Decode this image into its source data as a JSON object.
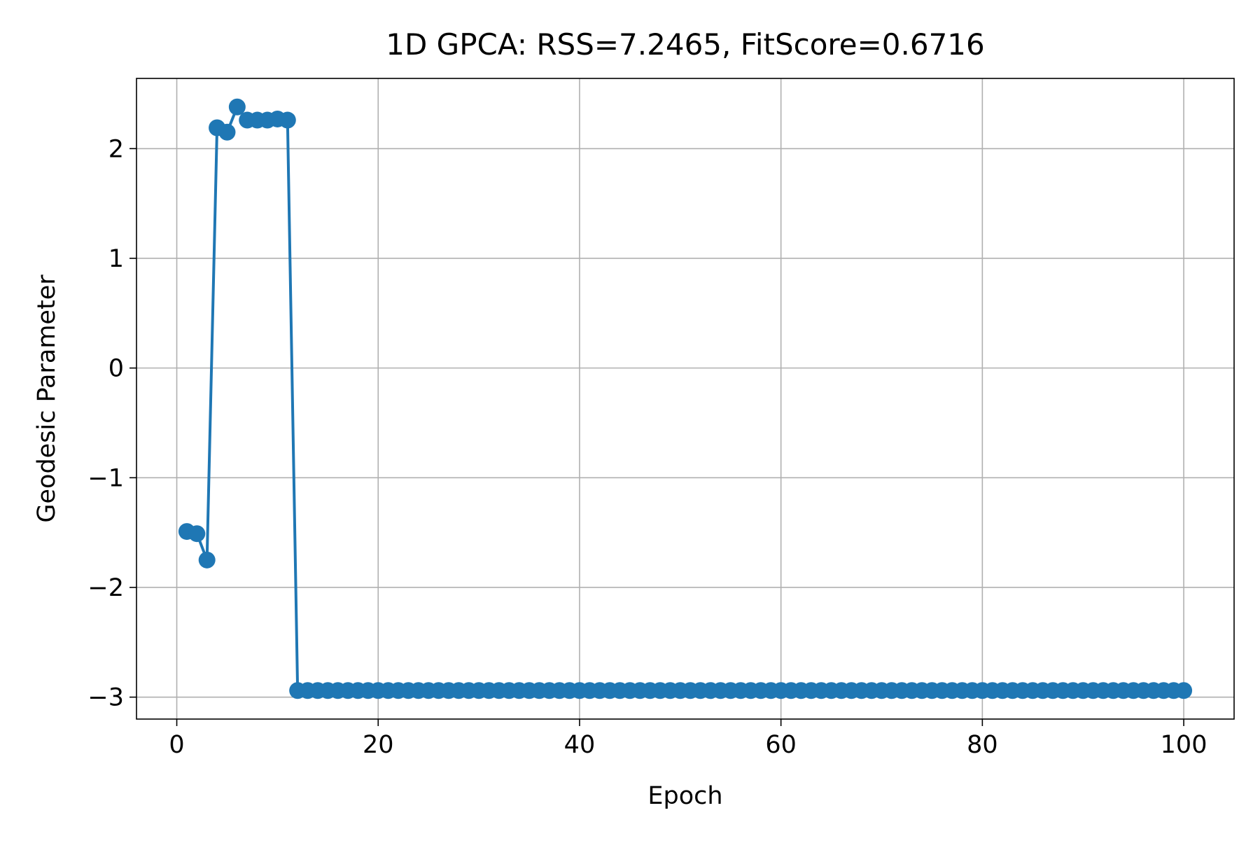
{
  "chart_data": {
    "type": "line",
    "title": "1D GPCA: RSS=7.2465, FitScore=0.6716",
    "xlabel": "Epoch",
    "ylabel": "Geodesic Parameter",
    "xlim": [
      -4,
      105
    ],
    "ylim": [
      -3.2,
      2.64
    ],
    "xticks": [
      0,
      20,
      40,
      60,
      80,
      100
    ],
    "yticks": [
      -3,
      -2,
      -1,
      0,
      1,
      2
    ],
    "grid": true,
    "legend": "none",
    "marker": "circle",
    "series": [
      {
        "color": "#1f77b4",
        "x": [
          1,
          2,
          3,
          4,
          5,
          6,
          7,
          8,
          9,
          10,
          11,
          12,
          13,
          14,
          15,
          16,
          17,
          18,
          19,
          20,
          21,
          22,
          23,
          24,
          25,
          26,
          27,
          28,
          29,
          30,
          31,
          32,
          33,
          34,
          35,
          36,
          37,
          38,
          39,
          40,
          41,
          42,
          43,
          44,
          45,
          46,
          47,
          48,
          49,
          50,
          51,
          52,
          53,
          54,
          55,
          56,
          57,
          58,
          59,
          60,
          61,
          62,
          63,
          64,
          65,
          66,
          67,
          68,
          69,
          70,
          71,
          72,
          73,
          74,
          75,
          76,
          77,
          78,
          79,
          80,
          81,
          82,
          83,
          84,
          85,
          86,
          87,
          88,
          89,
          90,
          91,
          92,
          93,
          94,
          95,
          96,
          97,
          98,
          99,
          100
        ],
        "y": [
          -1.49,
          -1.51,
          -1.75,
          2.19,
          2.15,
          2.38,
          2.26,
          2.26,
          2.26,
          2.27,
          2.26,
          -2.94,
          -2.94,
          -2.94,
          -2.94,
          -2.94,
          -2.94,
          -2.94,
          -2.94,
          -2.94,
          -2.94,
          -2.94,
          -2.94,
          -2.94,
          -2.94,
          -2.94,
          -2.94,
          -2.94,
          -2.94,
          -2.94,
          -2.94,
          -2.94,
          -2.94,
          -2.94,
          -2.94,
          -2.94,
          -2.94,
          -2.94,
          -2.94,
          -2.94,
          -2.94,
          -2.94,
          -2.94,
          -2.94,
          -2.94,
          -2.94,
          -2.94,
          -2.94,
          -2.94,
          -2.94,
          -2.94,
          -2.94,
          -2.94,
          -2.94,
          -2.94,
          -2.94,
          -2.94,
          -2.94,
          -2.94,
          -2.94,
          -2.94,
          -2.94,
          -2.94,
          -2.94,
          -2.94,
          -2.94,
          -2.94,
          -2.94,
          -2.94,
          -2.94,
          -2.94,
          -2.94,
          -2.94,
          -2.94,
          -2.94,
          -2.94,
          -2.94,
          -2.94,
          -2.94,
          -2.94,
          -2.94,
          -2.94,
          -2.94,
          -2.94,
          -2.94,
          -2.94,
          -2.94,
          -2.94,
          -2.94,
          -2.94,
          -2.94,
          -2.94,
          -2.94,
          -2.94,
          -2.94,
          -2.94,
          -2.94,
          -2.94,
          -2.94,
          -2.94
        ]
      }
    ]
  }
}
